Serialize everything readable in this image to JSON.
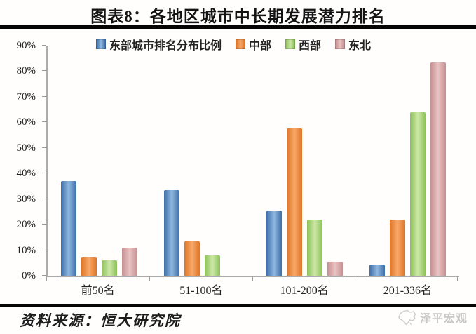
{
  "footer": {
    "source": "资料来源：恒大研究院",
    "watermark": "泽平宏观"
  },
  "chart_data": {
    "type": "bar",
    "title": "图表8：各地区城市中长期发展潜力排名",
    "categories": [
      "前50名",
      "51-100名",
      "101-200名",
      "201-336名"
    ],
    "series": [
      {
        "name": "东部城市排名分布比例",
        "color": "#4f81bd",
        "gradient": [
          "#3e6ea9",
          "#8fb8e0"
        ],
        "values": [
          37,
          33.5,
          25.5,
          4.5
        ]
      },
      {
        "name": "中部",
        "color": "#ef8b3f",
        "gradient": [
          "#dd7527",
          "#f9a869"
        ],
        "values": [
          7.5,
          13.5,
          57.5,
          22
        ]
      },
      {
        "name": "西部",
        "color": "#a9d673",
        "gradient": [
          "#8cc158",
          "#cde8a7"
        ],
        "values": [
          6,
          8,
          22,
          64
        ]
      },
      {
        "name": "东北",
        "color": "#d9a3a4",
        "gradient": [
          "#c68f91",
          "#eac3c3"
        ],
        "values": [
          11,
          0,
          5.5,
          83.5
        ]
      }
    ],
    "ylim": [
      0,
      90
    ],
    "y_ticks": [
      "0%",
      "10%",
      "20%",
      "30%",
      "40%",
      "50%",
      "60%",
      "70%",
      "80%",
      "90%"
    ],
    "grid": false,
    "legend_position": "top",
    "xlabel": "",
    "ylabel": ""
  }
}
